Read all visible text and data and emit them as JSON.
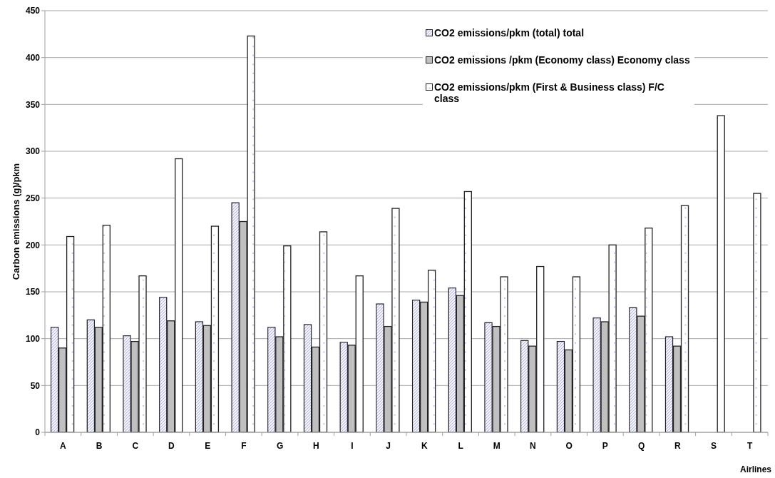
{
  "chart_data": {
    "type": "bar",
    "xlabel": "Airlines",
    "ylabel": "Carbon emissions (g)/pkm",
    "categories": [
      "A",
      "B",
      "C",
      "D",
      "E",
      "F",
      "G",
      "H",
      "I",
      "J",
      "K",
      "L",
      "M",
      "N",
      "O",
      "P",
      "Q",
      "R",
      "S",
      "T"
    ],
    "series": [
      {
        "name": "CO2 emissions/pkm (total) total",
        "color": "#b3b3f5",
        "values": [
          112,
          120,
          103,
          144,
          118,
          245,
          112,
          115,
          96,
          137,
          141,
          154,
          117,
          98,
          97,
          122,
          133,
          102,
          null,
          null
        ]
      },
      {
        "name": "CO2 emissions /pkm (Economy class) Economy class",
        "color": "#c0c0c0",
        "values": [
          90,
          112,
          97,
          119,
          114,
          225,
          102,
          91,
          93,
          113,
          139,
          146,
          113,
          92,
          88,
          118,
          124,
          92,
          null,
          null
        ]
      },
      {
        "name": "CO2 emissions/pkm (First & Business class) F/C class",
        "color": "#ffffff",
        "values": [
          209,
          221,
          167,
          292,
          220,
          423,
          199,
          214,
          167,
          239,
          173,
          257,
          166,
          177,
          166,
          200,
          218,
          242,
          338,
          255
        ]
      }
    ],
    "ylim": [
      0,
      450
    ],
    "yticks": [
      0,
      50,
      100,
      150,
      200,
      250,
      300,
      350,
      400,
      450
    ],
    "grid": "y",
    "legend": "top right"
  }
}
